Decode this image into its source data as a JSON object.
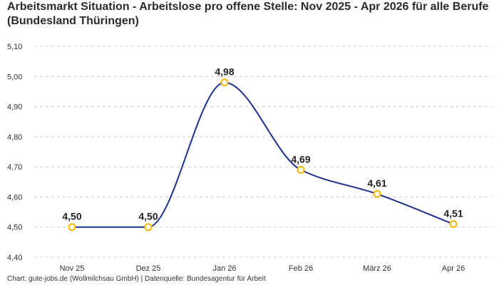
{
  "title": "Arbeitsmarkt Situation - Arbeitslose pro offene Stelle: Nov 2025 - Apr 2026 für alle Berufe (Bundesland Thüringen)",
  "footer": "Chart: gute-jobs.de (Wollmilchsau GmbH) | Datenquelle: Bundesagentur für Arbeit",
  "colors": {
    "line": "#1f2f8c",
    "marker_stroke": "#f5b800",
    "marker_fill": "#ffffff",
    "grid": "#cccccc"
  },
  "chart_data": {
    "type": "line",
    "categories": [
      "Nov 25",
      "Dez 25",
      "Jan 26",
      "Feb 26",
      "März 26",
      "Apr 26"
    ],
    "values": [
      4.5,
      4.5,
      4.98,
      4.69,
      4.61,
      4.51
    ],
    "value_labels": [
      "4,50",
      "4,50",
      "4,98",
      "4,69",
      "4,61",
      "4,51"
    ],
    "yticks": [
      4.4,
      4.5,
      4.6,
      4.7,
      4.8,
      4.9,
      5.0,
      5.1
    ],
    "ytick_labels": [
      "4,40",
      "4,50",
      "4,60",
      "4,70",
      "4,80",
      "4,90",
      "5,00",
      "5,10"
    ],
    "ylim": [
      4.4,
      5.1
    ],
    "smooth": true,
    "grid": true
  }
}
